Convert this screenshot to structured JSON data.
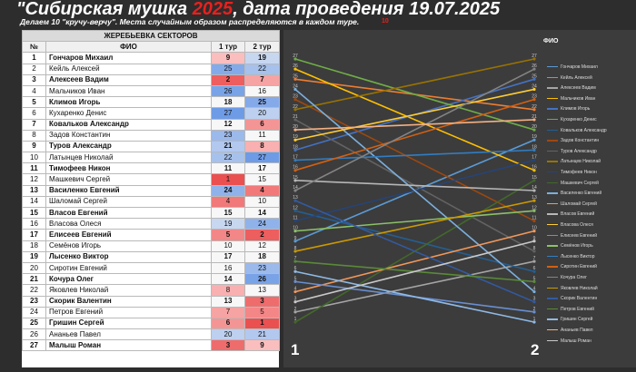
{
  "header": {
    "title_pre": "\"Сибирская мушка ",
    "title_year": "2025",
    "title_post": ", дата проведения 19.07.2025",
    "subtitle": "Делаем 10 \"кручу-верчу\". Места случайным образом распределяются в каждом туре.",
    "mark": "10"
  },
  "table": {
    "group_header": "ЖЕРЕБЬЕВКА СЕКТОРОВ",
    "col_num": "№",
    "col_name": "ФИО",
    "col_r1": "1 тур",
    "col_r2": "2 тур",
    "rows": [
      {
        "n": "1",
        "name": "Гончаров Михаил",
        "r1": "9",
        "r2": "19"
      },
      {
        "n": "2",
        "name": "Кейль Алексей",
        "r1": "25",
        "r2": "22"
      },
      {
        "n": "3",
        "name": "Алексеев Вадим",
        "r1": "2",
        "r2": "7"
      },
      {
        "n": "4",
        "name": "Мальчиков Иван",
        "r1": "26",
        "r2": "16"
      },
      {
        "n": "5",
        "name": "Климов Игорь",
        "r1": "18",
        "r2": "25"
      },
      {
        "n": "6",
        "name": "Кухаренко Денис",
        "r1": "27",
        "r2": "20"
      },
      {
        "n": "7",
        "name": "Ковальков Александр",
        "r1": "12",
        "r2": "6"
      },
      {
        "n": "8",
        "name": "Задов Константин",
        "r1": "23",
        "r2": "11"
      },
      {
        "n": "9",
        "name": "Туров Александр",
        "r1": "21",
        "r2": "8"
      },
      {
        "n": "10",
        "name": "Латынцев Николай",
        "r1": "22",
        "r2": "27"
      },
      {
        "n": "11",
        "name": "Тимофеев Никон",
        "r1": "11",
        "r2": "17"
      },
      {
        "n": "12",
        "name": "Машкевич Сергей",
        "r1": "1",
        "r2": "15"
      },
      {
        "n": "13",
        "name": "Василенко Евгений",
        "r1": "24",
        "r2": "4"
      },
      {
        "n": "14",
        "name": "Шаломай Сергей",
        "r1": "4",
        "r2": "10"
      },
      {
        "n": "15",
        "name": "Власов Евгений",
        "r1": "15",
        "r2": "14"
      },
      {
        "n": "16",
        "name": "Власова Олеся",
        "r1": "19",
        "r2": "24"
      },
      {
        "n": "17",
        "name": "Елисеев Евгений",
        "r1": "5",
        "r2": "2"
      },
      {
        "n": "18",
        "name": "Семёнов Игорь",
        "r1": "10",
        "r2": "12"
      },
      {
        "n": "19",
        "name": "Лысенко Виктор",
        "r1": "17",
        "r2": "18"
      },
      {
        "n": "20",
        "name": "Сиротин Евгений",
        "r1": "16",
        "r2": "23"
      },
      {
        "n": "21",
        "name": "Кочура Олег",
        "r1": "14",
        "r2": "26"
      },
      {
        "n": "22",
        "name": "Яковлев Николай",
        "r1": "8",
        "r2": "13"
      },
      {
        "n": "23",
        "name": "Скорик Валентин",
        "r1": "13",
        "r2": "3"
      },
      {
        "n": "24",
        "name": "Петров Евгений",
        "r1": "7",
        "r2": "5"
      },
      {
        "n": "25",
        "name": "Гришин Сергей",
        "r1": "6",
        "r2": "1"
      },
      {
        "n": "26",
        "name": "Ананьев Павел",
        "r1": "20",
        "r2": "21"
      },
      {
        "n": "27",
        "name": "Малыш Роман",
        "r1": "3",
        "r2": "9"
      }
    ]
  },
  "chart": {
    "legend_title": "ФИО",
    "label_left": "1",
    "label_right": "2",
    "colors": [
      "#5b9bd5",
      "#ed7d31",
      "#a5a5a5",
      "#ffc000",
      "#4472c4",
      "#70ad47",
      "#255e91",
      "#9e480e",
      "#636363",
      "#997300",
      "#264478",
      "#43682b",
      "#7cafdd",
      "#f1975a",
      "#b7b7b7",
      "#ffcd33",
      "#698ed0",
      "#8cc168",
      "#327dc2",
      "#d26012",
      "#848484",
      "#cc9a00",
      "#335aa1",
      "#5a8a39",
      "#8fbae5",
      "#f4b183",
      "#c9c9c9"
    ]
  }
}
